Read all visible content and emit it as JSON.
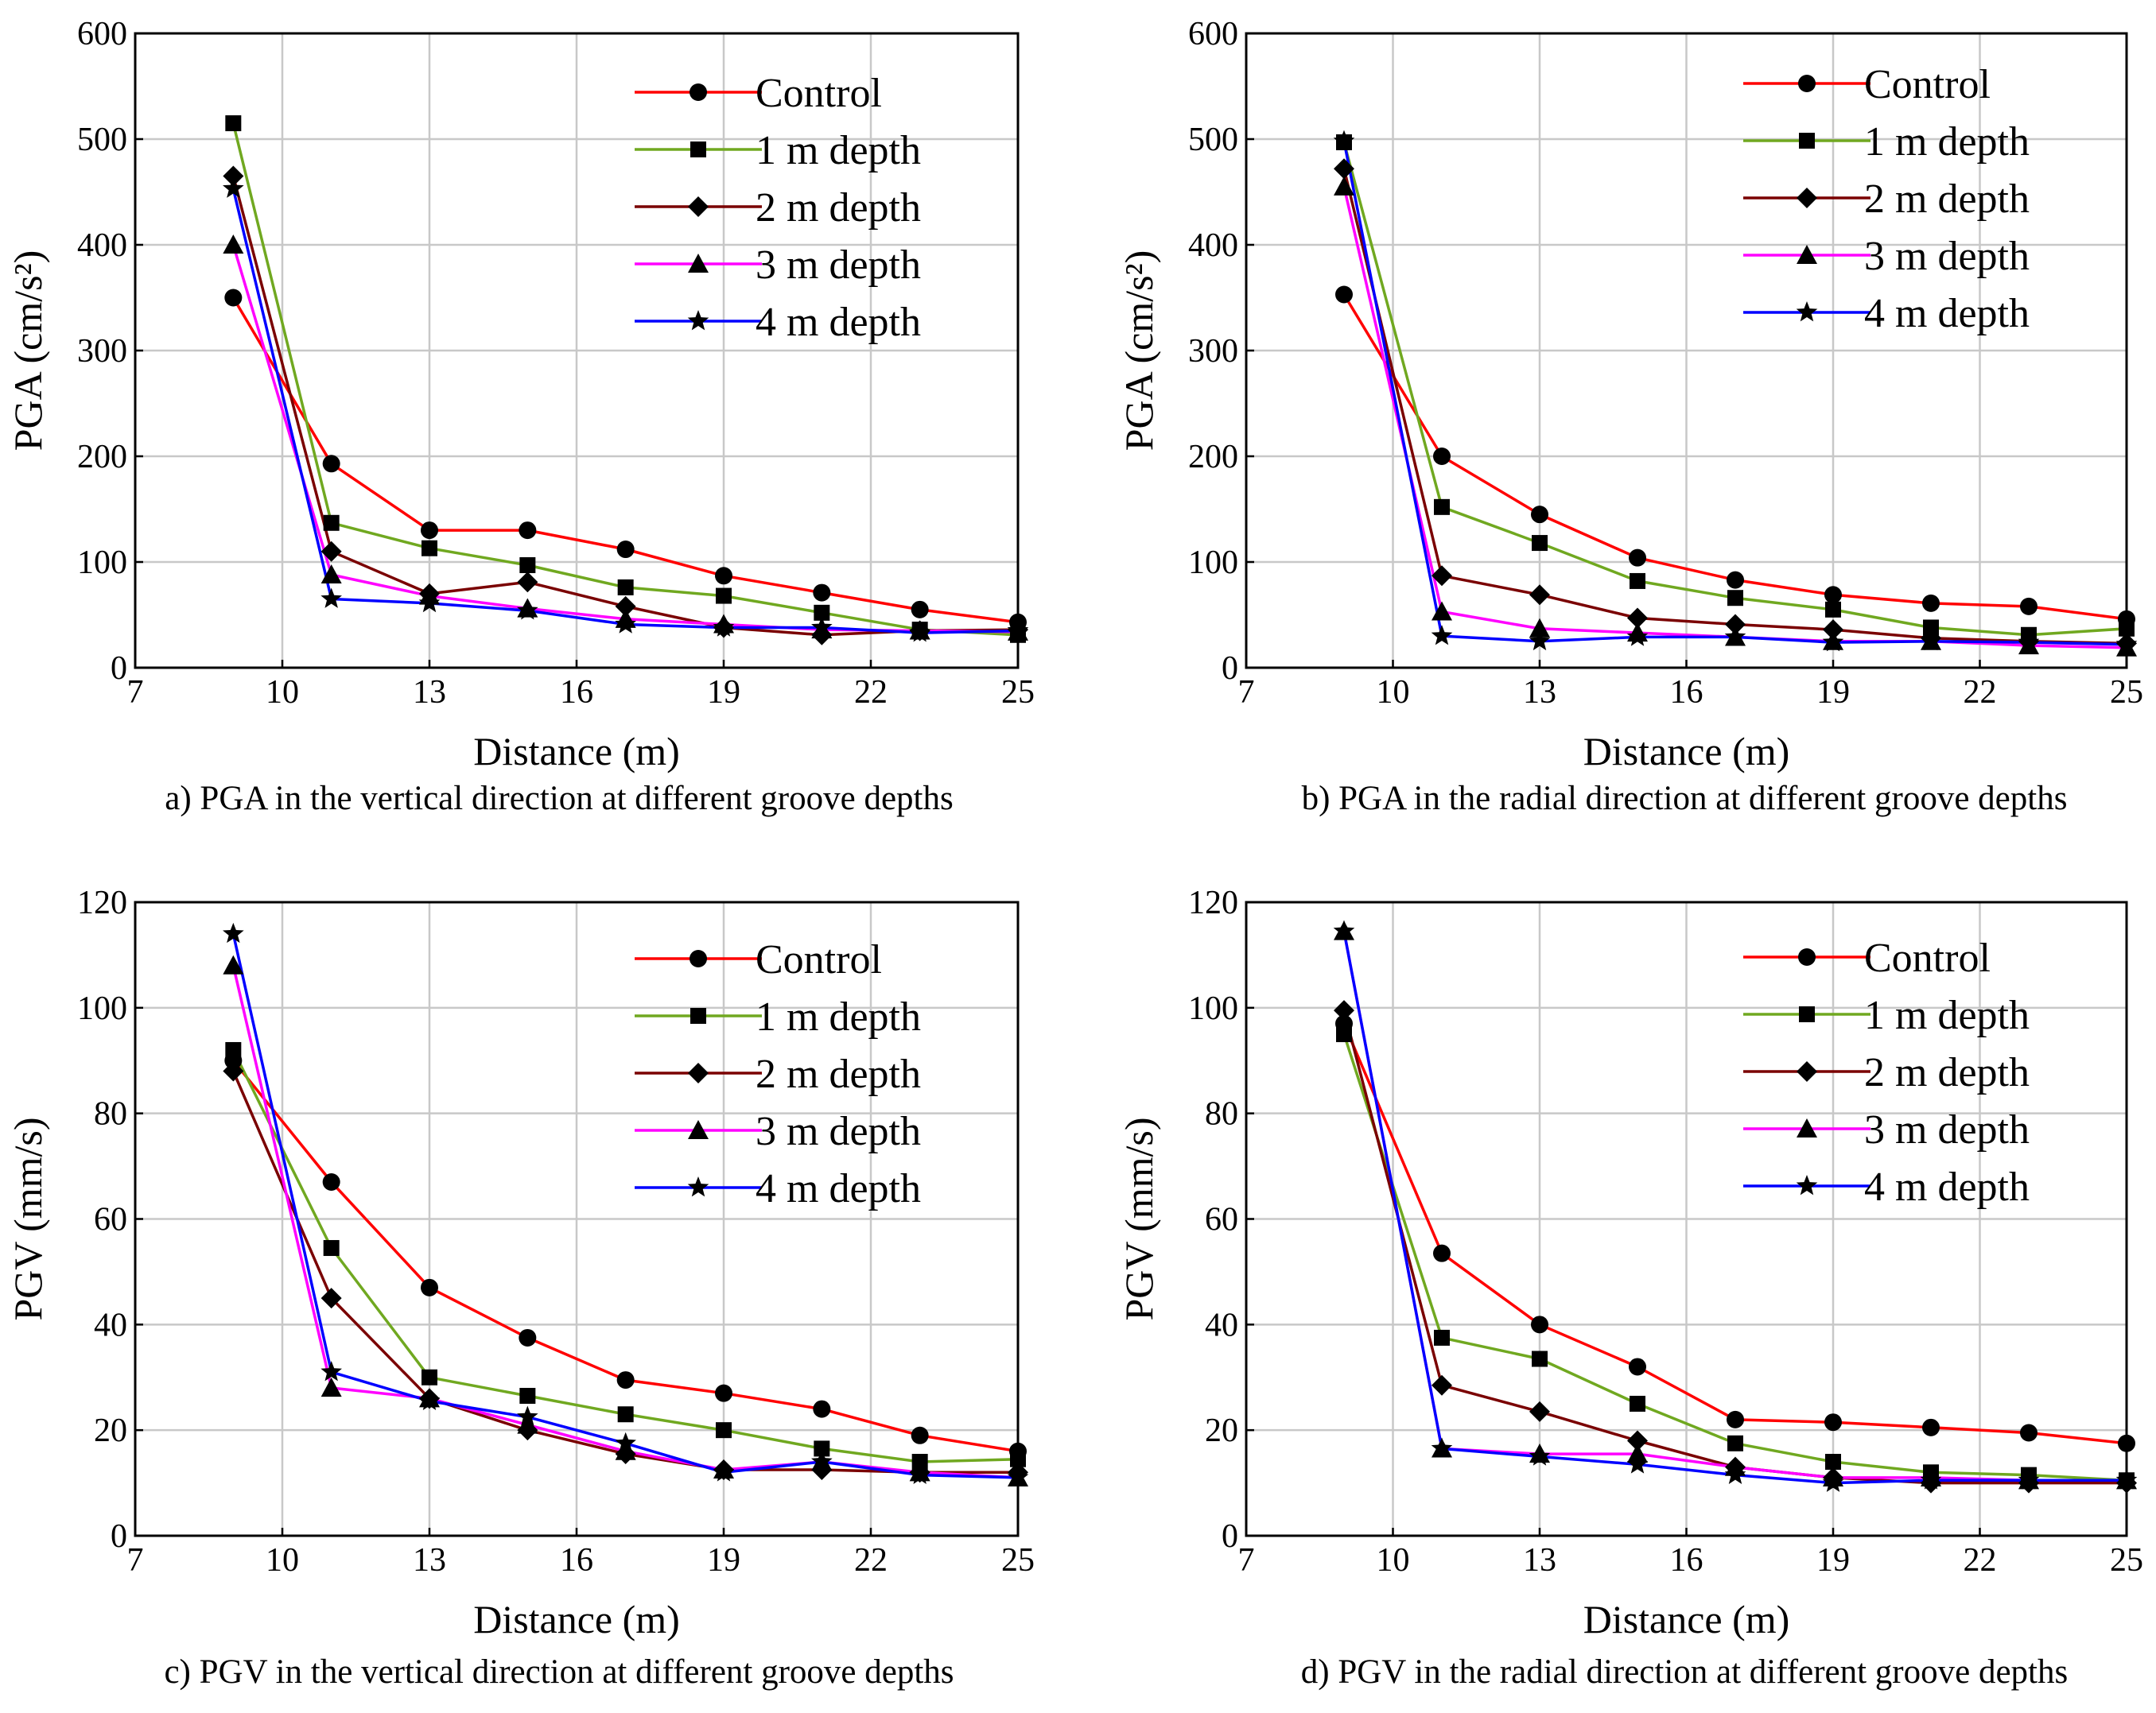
{
  "series_colors": {
    "Control": "#ff0000",
    "1 m depth": "#70a820",
    "2 m depth": "#7a0000",
    "3 m depth": "#ff00ff",
    "4 m depth": "#0000ff"
  },
  "chart_data": [
    {
      "type": "line",
      "caption": "a) PGA in the vertical direction at different groove depths",
      "xlabel": "Distance (m)",
      "ylabel": "PGA (cm/s²)",
      "xlim": [
        7,
        25
      ],
      "ylim": [
        0,
        600
      ],
      "xticks": [
        7,
        10,
        13,
        16,
        19,
        22,
        25
      ],
      "yticks": [
        0,
        100,
        200,
        300,
        400,
        500,
        600
      ],
      "grid": true,
      "legend": "top-right",
      "x": [
        9,
        11,
        13,
        15,
        17,
        19,
        21,
        23,
        25
      ],
      "series": [
        {
          "name": "Control",
          "marker": "circle",
          "values": [
            350,
            193,
            130,
            130,
            112,
            87,
            71,
            55,
            43
          ]
        },
        {
          "name": "1 m depth",
          "marker": "square",
          "values": [
            515,
            137,
            113,
            97,
            76,
            68,
            52,
            36,
            31
          ]
        },
        {
          "name": "2 m depth",
          "marker": "diamond",
          "values": [
            465,
            110,
            70,
            81,
            58,
            38,
            31,
            35,
            36
          ]
        },
        {
          "name": "3 m depth",
          "marker": "triangle",
          "values": [
            400,
            88,
            68,
            56,
            46,
            41,
            36,
            35,
            34
          ]
        },
        {
          "name": "4 m depth",
          "marker": "star",
          "values": [
            453,
            65,
            61,
            54,
            41,
            38,
            38,
            33,
            35
          ]
        }
      ]
    },
    {
      "type": "line",
      "caption": "b) PGA in the radial direction at different groove depths",
      "xlabel": "Distance (m)",
      "ylabel": "PGA (cm/s²)",
      "xlim": [
        7,
        25
      ],
      "ylim": [
        0,
        600
      ],
      "xticks": [
        7,
        10,
        13,
        16,
        19,
        22,
        25
      ],
      "yticks": [
        0,
        100,
        200,
        300,
        400,
        500,
        600
      ],
      "grid": true,
      "legend": "top-right",
      "x": [
        9,
        11,
        13,
        15,
        17,
        19,
        21,
        23,
        25
      ],
      "series": [
        {
          "name": "Control",
          "marker": "circle",
          "values": [
            353,
            200,
            145,
            104,
            83,
            69,
            61,
            58,
            46
          ]
        },
        {
          "name": "1 m depth",
          "marker": "square",
          "values": [
            497,
            152,
            118,
            82,
            66,
            55,
            38,
            31,
            37
          ]
        },
        {
          "name": "2 m depth",
          "marker": "diamond",
          "values": [
            472,
            87,
            69,
            47,
            41,
            36,
            28,
            25,
            23
          ]
        },
        {
          "name": "3 m depth",
          "marker": "triangle",
          "values": [
            455,
            53,
            37,
            33,
            29,
            25,
            25,
            21,
            19
          ]
        },
        {
          "name": "4 m depth",
          "marker": "star",
          "values": [
            498,
            30,
            25,
            29,
            29,
            24,
            25,
            24,
            22
          ]
        }
      ]
    },
    {
      "type": "line",
      "caption": "c) PGV in the vertical direction at different groove depths",
      "xlabel": "Distance (m)",
      "ylabel": "PGV (mm/s)",
      "xlim": [
        7,
        25
      ],
      "ylim": [
        0,
        120
      ],
      "xticks": [
        7,
        10,
        13,
        16,
        19,
        22,
        25
      ],
      "yticks": [
        0,
        20,
        40,
        60,
        80,
        100,
        120
      ],
      "grid": true,
      "legend": "top-right",
      "x": [
        9,
        11,
        13,
        15,
        17,
        19,
        21,
        23,
        25
      ],
      "series": [
        {
          "name": "Control",
          "marker": "circle",
          "values": [
            90,
            67,
            47,
            37.5,
            29.5,
            27,
            24,
            19,
            16
          ]
        },
        {
          "name": "1 m depth",
          "marker": "square",
          "values": [
            92,
            54.5,
            30,
            26.5,
            23,
            20,
            16.5,
            14,
            14.5
          ]
        },
        {
          "name": "2 m depth",
          "marker": "diamond",
          "values": [
            88,
            45,
            26,
            20,
            15.5,
            12.5,
            12.5,
            12,
            12
          ]
        },
        {
          "name": "3 m depth",
          "marker": "triangle",
          "values": [
            108,
            28,
            26,
            21,
            16,
            12.5,
            14,
            12,
            11
          ]
        },
        {
          "name": "4 m depth",
          "marker": "star",
          "values": [
            114,
            31,
            25.5,
            22.5,
            17.5,
            12,
            14,
            11.5,
            11
          ]
        }
      ]
    },
    {
      "type": "line",
      "caption": "d) PGV in the radial direction at different groove depths",
      "xlabel": "Distance (m)",
      "ylabel": "PGV (mm/s)",
      "xlim": [
        7,
        25
      ],
      "ylim": [
        0,
        120
      ],
      "xticks": [
        7,
        10,
        13,
        16,
        19,
        22,
        25
      ],
      "yticks": [
        0,
        20,
        40,
        60,
        80,
        100,
        120
      ],
      "grid": true,
      "legend": "top-right",
      "x": [
        9,
        11,
        13,
        15,
        17,
        19,
        21,
        23,
        25
      ],
      "series": [
        {
          "name": "Control",
          "marker": "circle",
          "values": [
            97,
            53.5,
            40,
            32,
            22,
            21.5,
            20.5,
            19.5,
            17.5
          ]
        },
        {
          "name": "1 m depth",
          "marker": "square",
          "values": [
            95,
            37.5,
            33.5,
            25,
            17.5,
            14,
            12,
            11.5,
            10.5
          ]
        },
        {
          "name": "2 m depth",
          "marker": "diamond",
          "values": [
            99.5,
            28.5,
            23.5,
            18,
            13,
            11,
            10,
            10,
            10
          ]
        },
        {
          "name": "3 m depth",
          "marker": "triangle",
          "values": [
            114.5,
            16.5,
            15.5,
            15.5,
            13,
            11,
            11,
            10.5,
            10.5
          ]
        },
        {
          "name": "4 m depth",
          "marker": "star",
          "values": [
            114.5,
            16.5,
            15,
            13.5,
            11.5,
            10,
            10.5,
            10.5,
            10.5
          ]
        }
      ]
    }
  ]
}
